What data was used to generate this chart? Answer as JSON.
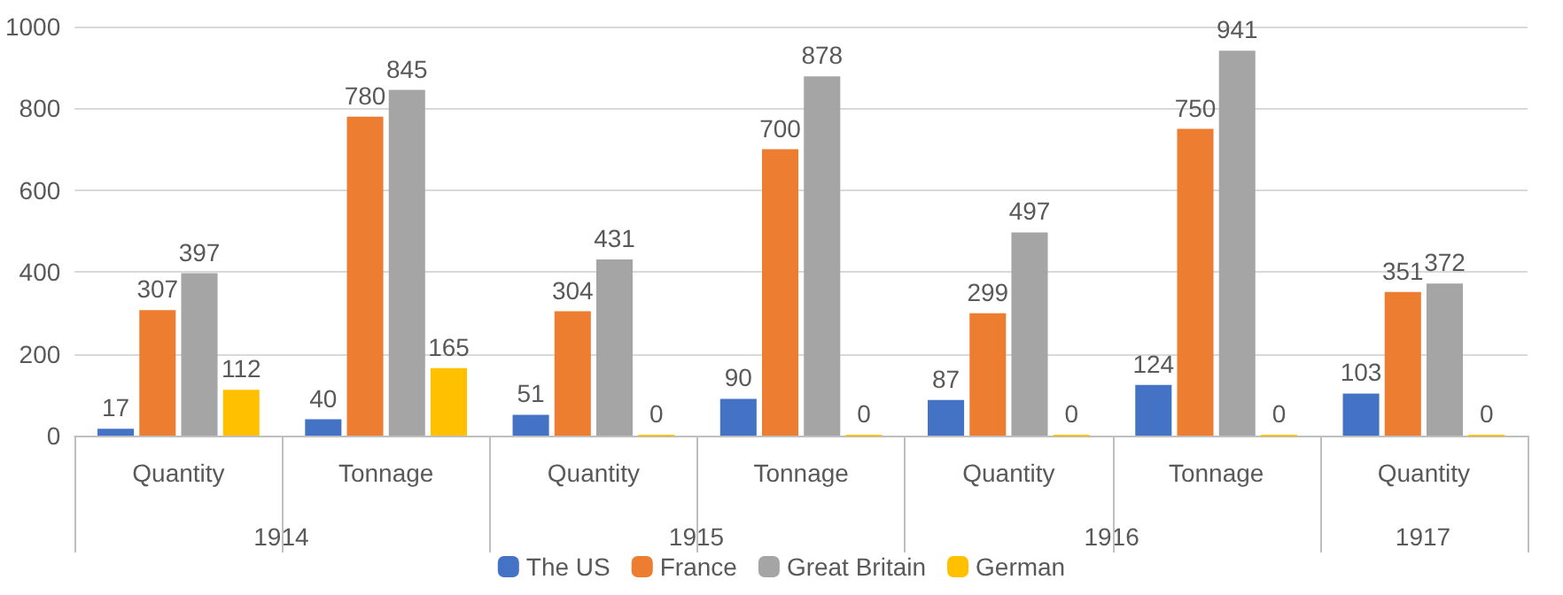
{
  "chart_data": {
    "type": "bar",
    "categories": [
      "Quantity",
      "Tonnage",
      "Quantity",
      "Tonnage",
      "Quantity",
      "Tonnage",
      "Quantity"
    ],
    "series": [
      {
        "name": "The US",
        "color": "#4472c4",
        "values": [
          17,
          40,
          51,
          90,
          87,
          124,
          103
        ]
      },
      {
        "name": "France",
        "color": "#ed7d31",
        "values": [
          307,
          780,
          304,
          700,
          299,
          750,
          351
        ]
      },
      {
        "name": "Great Britain",
        "color": "#a5a5a5",
        "values": [
          397,
          845,
          431,
          878,
          497,
          941,
          372
        ]
      },
      {
        "name": "German",
        "color": "#ffc000",
        "values": [
          112,
          165,
          0,
          0,
          0,
          0,
          0
        ]
      }
    ],
    "annotations": [
      "1914",
      "1915",
      "1916",
      "1917"
    ],
    "ylim": [
      0,
      1000
    ],
    "yticks": [
      0,
      200,
      400,
      600,
      800,
      1000
    ],
    "grid": "y",
    "legend": "bottom",
    "data_labels": true
  }
}
